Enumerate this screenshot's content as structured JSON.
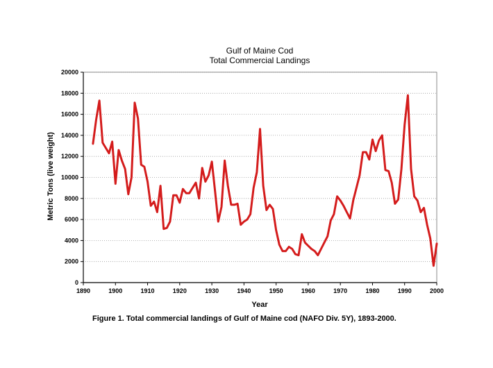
{
  "chart_data": {
    "type": "line",
    "title": "Gulf of Maine Cod",
    "subtitle": "Total Commercial Landings",
    "xlabel": "Year",
    "ylabel": "Metric Tons (live weight)",
    "xlim": [
      1890,
      2000
    ],
    "ylim": [
      0,
      20000
    ],
    "xticks": [
      1890,
      1900,
      1910,
      1920,
      1930,
      1940,
      1950,
      1960,
      1970,
      1980,
      1990,
      2000
    ],
    "yticks": [
      0,
      2000,
      4000,
      6000,
      8000,
      10000,
      12000,
      14000,
      16000,
      18000,
      20000
    ],
    "grid": "horizontal dotted",
    "line_color": "#d41c1c",
    "series": [
      {
        "x": [
          1893,
          1894,
          1895,
          1896,
          1897,
          1898,
          1899,
          1900,
          1901,
          1902,
          1903,
          1904,
          1905,
          1906,
          1907,
          1908,
          1909,
          1910,
          1911,
          1912,
          1913,
          1914,
          1915,
          1916,
          1917,
          1918,
          1919,
          1920,
          1921,
          1922,
          1923,
          1924,
          1925,
          1926,
          1927,
          1928,
          1929,
          1930,
          1931,
          1932,
          1933,
          1934,
          1935,
          1936,
          1937,
          1938,
          1939,
          1940,
          1941,
          1942,
          1943,
          1944,
          1945,
          1946,
          1947,
          1948,
          1949,
          1950,
          1951,
          1952,
          1953,
          1954,
          1955,
          1956,
          1957,
          1958,
          1959,
          1960,
          1961,
          1962,
          1963,
          1964,
          1965,
          1966,
          1967,
          1968,
          1969,
          1970,
          1971,
          1972,
          1973,
          1974,
          1975,
          1976,
          1977,
          1978,
          1979,
          1980,
          1981,
          1982,
          1983,
          1984,
          1985,
          1986,
          1987,
          1988,
          1989,
          1990,
          1991,
          1992,
          1993,
          1994,
          1995,
          1996,
          1997,
          1998,
          1999,
          2000
        ],
        "y": [
          13200,
          15500,
          17300,
          13300,
          12800,
          12300,
          13400,
          9400,
          12600,
          11600,
          10800,
          8400,
          10000,
          17100,
          15600,
          11200,
          11000,
          9600,
          7300,
          7700,
          6700,
          9200,
          5100,
          5200,
          5800,
          8300,
          8300,
          7600,
          8900,
          8500,
          8500,
          9000,
          9500,
          8000,
          10900,
          9600,
          10200,
          11500,
          8700,
          5800,
          7200,
          11600,
          9200,
          7400,
          7400,
          7500,
          5500,
          5800,
          6000,
          6500,
          9000,
          10500,
          14600,
          9200,
          6900,
          7400,
          7000,
          5000,
          3600,
          3000,
          3000,
          3400,
          3200,
          2700,
          2600,
          4600,
          3800,
          3500,
          3200,
          3000,
          2600,
          3200,
          3800,
          4400,
          5900,
          6500,
          8200,
          7800,
          7300,
          6700,
          6100,
          7800,
          9000,
          10200,
          12400,
          12400,
          11700,
          13600,
          12500,
          13500,
          14000,
          10700,
          10600,
          9500,
          7500,
          7900,
          10800,
          15000,
          17800,
          10800,
          8200,
          7800,
          6700,
          7100,
          5500,
          4200,
          1600,
          3700
        ]
      }
    ]
  },
  "caption": "Figure 1.  Total commercial landings of Gulf of Maine cod (NAFO Div. 5Y), 1893-2000."
}
